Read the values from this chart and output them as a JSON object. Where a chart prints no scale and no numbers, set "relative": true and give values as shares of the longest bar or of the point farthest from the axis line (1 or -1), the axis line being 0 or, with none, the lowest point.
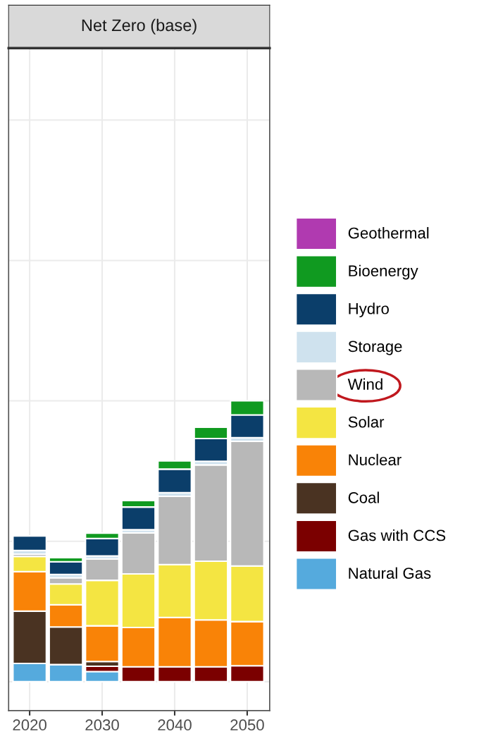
{
  "chart_data": {
    "type": "bar",
    "title": "Net Zero (base)",
    "stacked": true,
    "relative": true,
    "x": [
      2020,
      2025,
      2030,
      2035,
      2040,
      2045,
      2050
    ],
    "xlim": [
      2017.1,
      2053.1
    ],
    "xticks": [
      2020,
      2030,
      2040,
      2050
    ],
    "tick_labels": "x",
    "grid": true,
    "legend": "right",
    "series": [
      {
        "name": "Natural Gas",
        "color": "#55aadd",
        "values": [
          0.065,
          0.061,
          0.036,
          null,
          null,
          null,
          null
        ]
      },
      {
        "name": "Gas with CCS",
        "color": "#7b0000",
        "values": [
          null,
          null,
          0.019,
          0.053,
          0.053,
          0.053,
          0.057
        ]
      },
      {
        "name": "Coal",
        "color": "#4a3322",
        "values": [
          0.186,
          0.134,
          0.017,
          null,
          null,
          null,
          null
        ]
      },
      {
        "name": "Nuclear",
        "color": "#f98307",
        "values": [
          0.141,
          0.079,
          0.127,
          0.14,
          0.176,
          0.167,
          0.157
        ]
      },
      {
        "name": "Solar",
        "color": "#f4e542",
        "values": [
          0.054,
          0.074,
          0.162,
          0.191,
          0.188,
          0.209,
          0.198
        ]
      },
      {
        "name": "Wind",
        "color": "#b8b8b8",
        "values": [
          0.008,
          0.022,
          0.076,
          0.146,
          0.243,
          0.343,
          0.444
        ]
      },
      {
        "name": "Storage",
        "color": "#cfe2ee",
        "values": [
          0.013,
          0.012,
          0.011,
          0.011,
          0.013,
          0.013,
          0.013
        ]
      },
      {
        "name": "Hydro",
        "color": "#0b3e6a",
        "values": [
          0.052,
          0.045,
          0.062,
          0.081,
          0.084,
          0.081,
          0.081
        ]
      },
      {
        "name": "Bioenergy",
        "color": "#109a20",
        "values": [
          null,
          0.015,
          0.019,
          0.023,
          0.029,
          0.04,
          0.05
        ]
      },
      {
        "name": "Geothermal",
        "color": "#b03ab0",
        "values": [
          null,
          null,
          null,
          null,
          null,
          null,
          null
        ]
      }
    ]
  }
}
